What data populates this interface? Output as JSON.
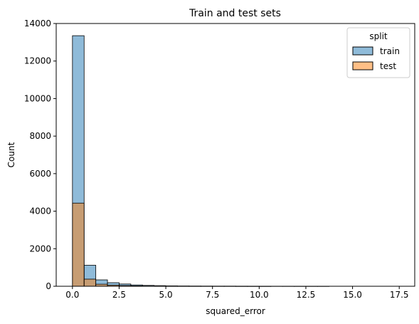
{
  "chart_data": {
    "type": "histogram",
    "title": "Train and test sets",
    "xlabel": "squared_error",
    "ylabel": "Count",
    "xlim": [
      -0.87,
      18.33
    ],
    "ylim": [
      0,
      14000
    ],
    "xticks": [
      0.0,
      2.5,
      5.0,
      7.5,
      10.0,
      12.5,
      15.0,
      17.5
    ],
    "xtick_labels": [
      "0.0",
      "2.5",
      "5.0",
      "7.5",
      "10.0",
      "12.5",
      "15.0",
      "17.5"
    ],
    "yticks": [
      0,
      2000,
      4000,
      6000,
      8000,
      10000,
      12000,
      14000
    ],
    "ytick_labels": [
      "0",
      "2000",
      "4000",
      "6000",
      "8000",
      "10000",
      "12000",
      "14000"
    ],
    "grid": false,
    "bin_width": 0.625,
    "bin_edges_start": 0.0,
    "series": [
      {
        "name": "train",
        "color": "#1f77b4",
        "values": [
          13350,
          1120,
          340,
          190,
          120,
          70,
          45,
          30,
          20,
          15,
          12,
          10,
          8,
          8,
          6,
          5,
          4,
          3,
          2,
          1,
          1,
          1,
          0,
          0,
          0,
          0,
          0,
          0
        ]
      },
      {
        "name": "test",
        "color": "#ff7f0e",
        "values": [
          4430,
          380,
          110,
          60,
          40,
          22,
          14,
          10,
          6,
          4,
          3,
          3,
          2,
          2,
          1,
          1,
          1,
          0,
          0,
          0,
          0,
          0,
          0,
          0,
          0,
          0,
          0,
          0
        ]
      }
    ],
    "legend": {
      "title": "split",
      "location": "upper right",
      "entries": [
        "train",
        "test"
      ]
    }
  }
}
